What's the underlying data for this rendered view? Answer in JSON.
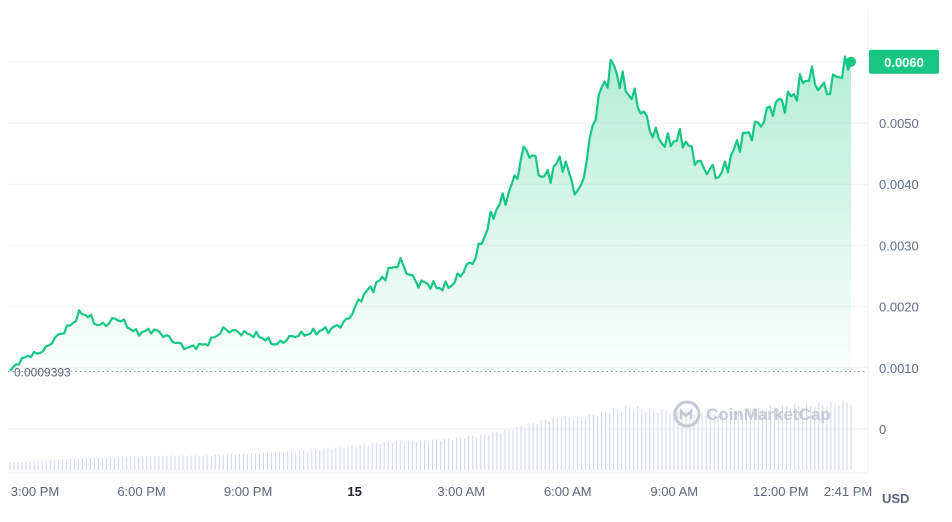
{
  "chart_data": {
    "type": "area",
    "ylim": [
      0,
      0.007
    ],
    "y_ticks": [
      "0.0060",
      "0.0050",
      "0.0040",
      "0.0030",
      "0.0020",
      "0.0010",
      "0"
    ],
    "y_tick_values": [
      0.006,
      0.005,
      0.004,
      0.003,
      0.002,
      0.001,
      0
    ],
    "x_tick_labels": [
      "3:00 PM",
      "6:00 PM",
      "9:00 PM",
      "15",
      "3:00 AM",
      "6:00 AM",
      "9:00 AM",
      "12:00 PM",
      "2:41 PM"
    ],
    "currency_label": "USD",
    "baseline_value": 0.0009393,
    "baseline_label": "0.0009393",
    "current_value": 0.006,
    "current_label": "0.0060",
    "watermark": "CoinMarketCap",
    "x_hours": [
      0,
      0.5,
      1,
      1.5,
      2,
      2.5,
      3,
      3.5,
      4,
      4.5,
      5,
      5.5,
      6,
      6.5,
      7,
      7.5,
      8,
      8.5,
      9,
      9.5,
      10,
      10.5,
      11,
      11.5,
      12,
      12.5,
      13,
      13.5,
      14,
      14.5,
      15,
      15.5,
      16,
      16.5,
      17,
      17.5,
      18,
      18.5,
      19,
      19.5,
      20,
      20.5,
      21,
      21.5,
      22,
      22.5,
      23,
      23.5,
      23.68
    ],
    "price": [
      0.00095,
      0.0012,
      0.0013,
      0.0016,
      0.0019,
      0.0017,
      0.0018,
      0.0016,
      0.0016,
      0.0015,
      0.0013,
      0.0014,
      0.0016,
      0.0016,
      0.0015,
      0.0014,
      0.0015,
      0.0016,
      0.0016,
      0.0018,
      0.0022,
      0.0025,
      0.0027,
      0.0024,
      0.0023,
      0.0024,
      0.0027,
      0.0034,
      0.0038,
      0.0046,
      0.0041,
      0.0044,
      0.0038,
      0.0052,
      0.006,
      0.0054,
      0.005,
      0.0046,
      0.0048,
      0.0042,
      0.0042,
      0.0046,
      0.005,
      0.0052,
      0.0055,
      0.0057,
      0.0056,
      0.0058,
      0.006
    ],
    "volume_share": [
      0.06,
      0.07,
      0.08,
      0.09,
      0.1,
      0.1,
      0.11,
      0.11,
      0.11,
      0.12,
      0.12,
      0.12,
      0.13,
      0.13,
      0.14,
      0.15,
      0.16,
      0.17,
      0.18,
      0.19,
      0.21,
      0.23,
      0.24,
      0.24,
      0.25,
      0.26,
      0.28,
      0.3,
      0.33,
      0.37,
      0.41,
      0.44,
      0.43,
      0.46,
      0.5,
      0.52,
      0.5,
      0.49,
      0.48,
      0.47,
      0.47,
      0.48,
      0.5,
      0.52,
      0.53,
      0.54,
      0.55,
      0.56,
      0.56
    ]
  }
}
